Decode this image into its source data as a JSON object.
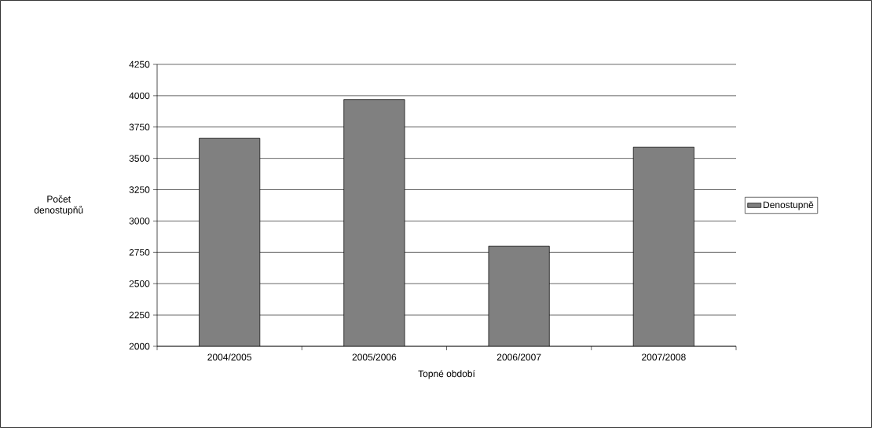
{
  "chart_data": {
    "type": "bar",
    "xlabel": "Topné období",
    "ylabel": "Počet denostupňů",
    "categories": [
      "2004/2005",
      "2005/2006",
      "2006/2007",
      "2007/2008"
    ],
    "series": [
      {
        "name": "Denostupně",
        "color": "#808080",
        "values": [
          3660,
          3970,
          2800,
          3590
        ]
      }
    ],
    "ylim": [
      2000,
      4250
    ],
    "yticks": [
      2000,
      2250,
      2500,
      2750,
      3000,
      3250,
      3500,
      3750,
      4000,
      4250
    ],
    "grid": "y",
    "legend": "right"
  }
}
